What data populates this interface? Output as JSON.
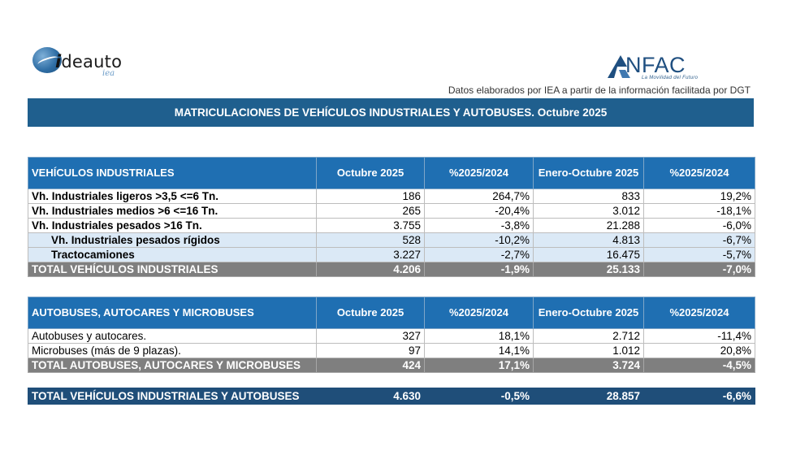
{
  "logos": {
    "ideauto_brand_i": "i",
    "ideauto_brand_rest": "deauto",
    "ideauto_sub": "iea",
    "anfac_word": "NFAC",
    "anfac_tag": "La Movilidad del Futuro"
  },
  "source_note": "Datos elaborados por IEA a partir de la información facilitada por DGT",
  "title": "MATRICULACIONES DE VEHÍCULOS INDUSTRIALES Y AUTOBUSES.  Octubre 2025",
  "industrial": {
    "header": {
      "label": "VEHÍCULOS INDUSTRIALES",
      "col1": "Octubre 2025",
      "col2": "%2025/2024",
      "col3": "Enero-Octubre 2025",
      "col4": "%2025/2024"
    },
    "rows": [
      {
        "label": "Vh. Industriales ligeros >3,5 <=6 Tn.",
        "oct": "186",
        "pct": "264,7%",
        "ytd": "833",
        "ytd_pct": "19,2%"
      },
      {
        "label": "Vh. Industriales medios >6  <=16 Tn.",
        "oct": "265",
        "pct": "-20,4%",
        "ytd": "3.012",
        "ytd_pct": "-18,1%"
      },
      {
        "label": "Vh. Industriales  pesados >16 Tn.",
        "oct": "3.755",
        "pct": "-3,8%",
        "ytd": "21.288",
        "ytd_pct": "-6,0%"
      },
      {
        "label": "Vh. Industriales pesados rígidos",
        "oct": "528",
        "pct": "-10,2%",
        "ytd": "4.813",
        "ytd_pct": "-6,7%"
      },
      {
        "label": "Tractocamiones",
        "oct": "3.227",
        "pct": "-2,7%",
        "ytd": "16.475",
        "ytd_pct": "-5,7%"
      }
    ],
    "total": {
      "label": "TOTAL VEHÍCULOS INDUSTRIALES",
      "oct": "4.206",
      "pct": "-1,9%",
      "ytd": "25.133",
      "ytd_pct": "-7,0%"
    }
  },
  "buses": {
    "header": {
      "label": "AUTOBUSES, AUTOCARES Y MICROBUSES",
      "col1": "Octubre 2025",
      "col2": "%2025/2024",
      "col3": "Enero-Octubre 2025",
      "col4": "%2025/2024"
    },
    "rows": [
      {
        "label": "Autobuses y autocares.",
        "oct": "327",
        "pct": "18,1%",
        "ytd": "2.712",
        "ytd_pct": "-11,4%"
      },
      {
        "label": "Microbuses (más de 9 plazas).",
        "oct": "97",
        "pct": "14,1%",
        "ytd": "1.012",
        "ytd_pct": "20,8%"
      }
    ],
    "total": {
      "label": "TOTAL AUTOBUSES, AUTOCARES Y MICROBUSES",
      "oct": "424",
      "pct": "17,1%",
      "ytd": "3.724",
      "ytd_pct": "-4,5%"
    }
  },
  "grand_total": {
    "label": "TOTAL VEHÍCULOS INDUSTRIALES Y AUTOBUSES",
    "oct": "4.630",
    "pct": "-0,5%",
    "ytd": "28.857",
    "ytd_pct": "-6,6%"
  },
  "colors": {
    "title_bar": "#1f5f8e",
    "header": "#1f6fb2",
    "total": "#7f7f7f",
    "grand": "#1f4e79",
    "subrow": "#dbe9f6"
  }
}
